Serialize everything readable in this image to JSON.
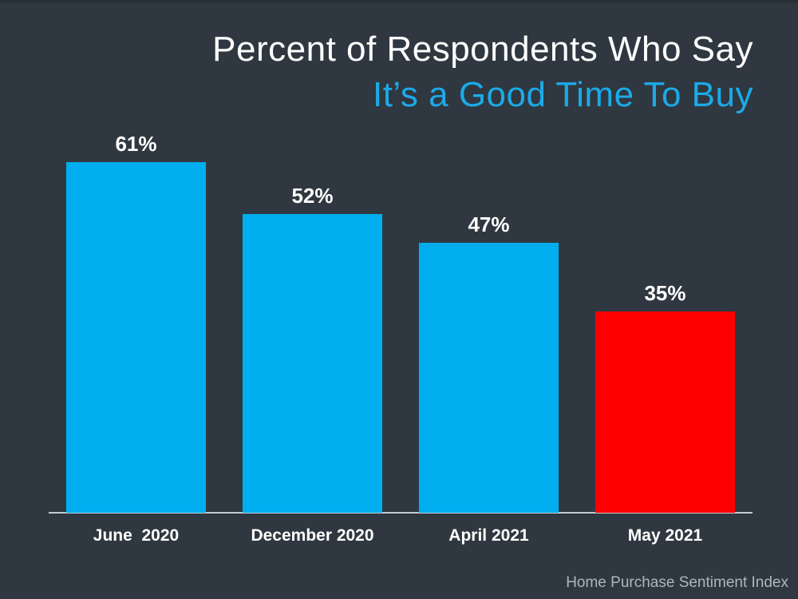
{
  "title": {
    "line1": "Percent of Respondents Who Say",
    "line2": "It’s a Good Time To Buy"
  },
  "source_note": "Home Purchase Sentiment Index",
  "colors": {
    "background": "#2F3840",
    "title_primary": "#FFFFFF",
    "title_accent": "#1CAAE8",
    "bar_blue": "#00AEEF",
    "bar_red": "#FF0000",
    "axis_line": "#C5CBD0",
    "label_text": "#FFFFFF",
    "source_text": "#AEB5BB"
  },
  "chart_data": {
    "type": "bar",
    "title": "Percent of Respondents Who Say It’s a Good Time To Buy",
    "categories": [
      "June  2020",
      "December 2020",
      "April 2021",
      "May 2021"
    ],
    "values": [
      61,
      52,
      47,
      35
    ],
    "data_labels": [
      "61%",
      "52%",
      "47%",
      "35%"
    ],
    "bar_colors": [
      "#00AEEF",
      "#00AEEF",
      "#00AEEF",
      "#FF0000"
    ],
    "unit": "%",
    "xlabel": "",
    "ylabel": "",
    "ylim": [
      0,
      65
    ],
    "grid": false,
    "legend": false,
    "y_axis_visible": false,
    "x_axis_visible": true,
    "source": "Home Purchase Sentiment Index"
  }
}
